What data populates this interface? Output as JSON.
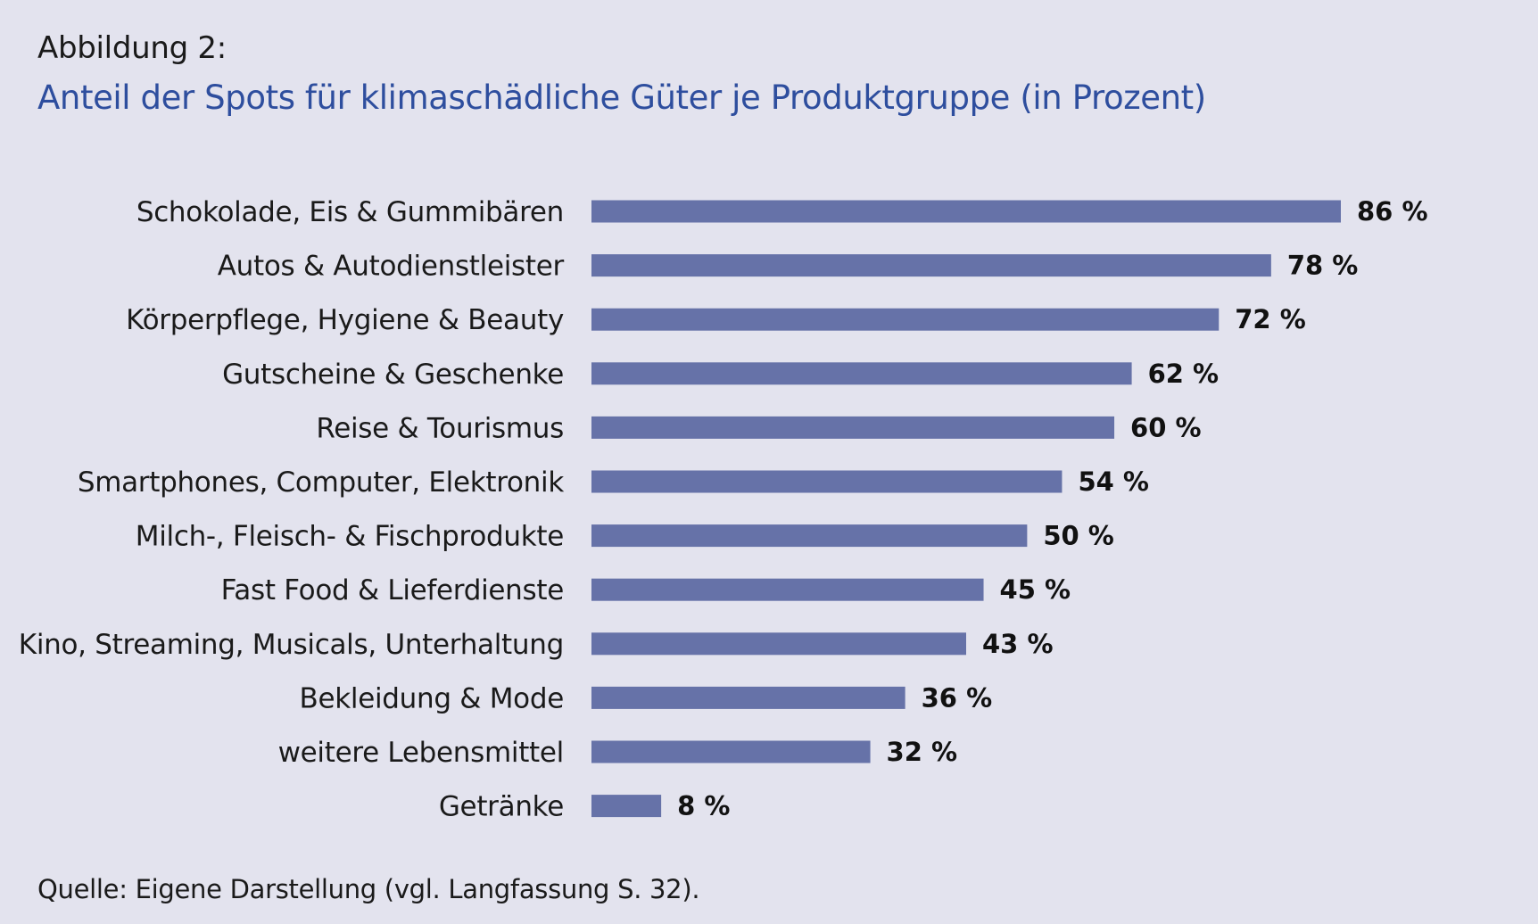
{
  "figure_label": "Abbildung 2:",
  "title": "Anteil der Spots für klimaschädliche Güter je Produktgruppe (in Prozent)",
  "source": "Quelle: Eigene Darstellung (vgl. Langfassung S. 32).",
  "colors": {
    "background": "#e3e3ee",
    "bar": "#6672a8",
    "title": "#2e4e9e"
  },
  "chart_data": {
    "type": "bar",
    "orientation": "horizontal",
    "title": "Anteil der Spots für klimaschädliche Güter je Produktgruppe (in Prozent)",
    "xlabel": "",
    "ylabel": "",
    "xlim": [
      0,
      86
    ],
    "grid": false,
    "categories": [
      "Schokolade, Eis & Gummibären",
      "Autos & Autodienstleister",
      "Körperpflege, Hygiene & Beauty",
      "Gutscheine & Geschenke",
      "Reise & Tourismus",
      "Smartphones, Computer, Elektronik",
      "Milch-, Fleisch- & Fischprodukte",
      "Fast Food & Lieferdienste",
      "Kino, Streaming, Musicals, Unterhaltung",
      "Bekleidung & Mode",
      "weitere Lebensmittel",
      "Getränke"
    ],
    "values": [
      86,
      78,
      72,
      62,
      60,
      54,
      50,
      45,
      43,
      36,
      32,
      8
    ],
    "value_labels": [
      "86 %",
      "78 %",
      "72 %",
      "62 %",
      "60 %",
      "54 %",
      "50 %",
      "45 %",
      "43 %",
      "36 %",
      "32 %",
      "8 %"
    ]
  }
}
